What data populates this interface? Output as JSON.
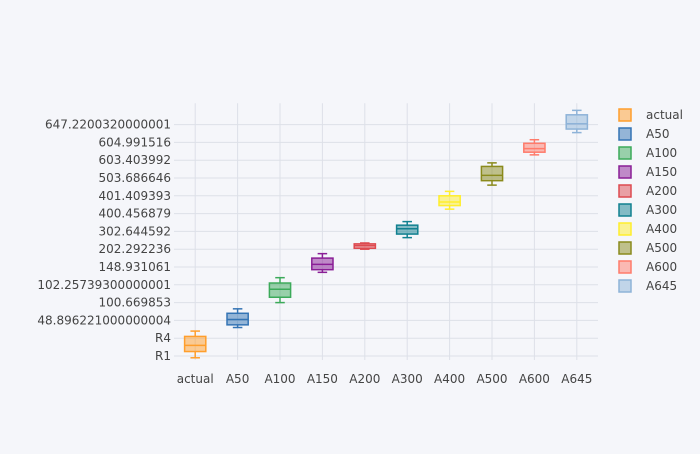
{
  "colors": {
    "background": "#f5f6fa",
    "grid": "#dde0e8",
    "tick_text": "#444444"
  },
  "chart_data": {
    "type": "box",
    "title": "",
    "xlabel": "",
    "ylabel": "",
    "grid": true,
    "legend_position": "right",
    "categories": [
      "actual",
      "A50",
      "A100",
      "A150",
      "A200",
      "A300",
      "A400",
      "A500",
      "A600",
      "A645"
    ],
    "y_tick_labels": [
      "R1",
      "R4",
      "48.896221000000004",
      "100.669853",
      "102.25739300000001",
      "148.931061",
      "202.292236",
      "302.644592",
      "400.456879",
      "401.409393",
      "503.686646",
      "603.403992",
      "604.991516",
      "647.2200320000001"
    ],
    "series": [
      {
        "name": "actual",
        "color": "#ff9e2c",
        "whisker_low": -0.1,
        "q1": 0.25,
        "median": 0.6,
        "q3": 1.1,
        "whisker_high": 1.4
      },
      {
        "name": "A50",
        "color": "#3474b4",
        "whisker_low": 1.6,
        "q1": 1.75,
        "median": 2.05,
        "q3": 2.4,
        "whisker_high": 2.65
      },
      {
        "name": "A100",
        "color": "#3caa5a",
        "whisker_low": 3.0,
        "q1": 3.3,
        "median": 3.75,
        "q3": 4.1,
        "whisker_high": 4.4
      },
      {
        "name": "A150",
        "color": "#8a1e96",
        "whisker_low": 4.7,
        "q1": 4.85,
        "median": 5.15,
        "q3": 5.5,
        "whisker_high": 5.75
      },
      {
        "name": "A200",
        "color": "#dd4a50",
        "whisker_low": 6.0,
        "q1": 6.05,
        "median": 6.2,
        "q3": 6.3,
        "whisker_high": 6.35
      },
      {
        "name": "A300",
        "color": "#118090",
        "whisker_low": 6.65,
        "q1": 6.85,
        "median": 7.15,
        "q3": 7.35,
        "whisker_high": 7.55
      },
      {
        "name": "A400",
        "color": "#ffee2c",
        "whisker_low": 8.25,
        "q1": 8.45,
        "median": 8.65,
        "q3": 9.0,
        "whisker_high": 9.25
      },
      {
        "name": "A500",
        "color": "#8a8a1c",
        "whisker_low": 9.6,
        "q1": 9.85,
        "median": 10.15,
        "q3": 10.65,
        "whisker_high": 10.85
      },
      {
        "name": "A600",
        "color": "#ff7b6b",
        "whisker_low": 11.3,
        "q1": 11.45,
        "median": 11.65,
        "q3": 11.95,
        "whisker_high": 12.15
      },
      {
        "name": "A645",
        "color": "#8eb3d8",
        "whisker_low": 12.55,
        "q1": 12.75,
        "median": 13.05,
        "q3": 13.55,
        "whisker_high": 13.8
      }
    ]
  }
}
